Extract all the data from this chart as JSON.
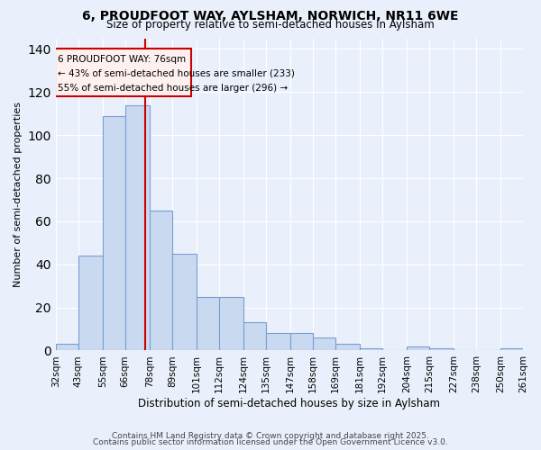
{
  "title1": "6, PROUDFOOT WAY, AYLSHAM, NORWICH, NR11 6WE",
  "title2": "Size of property relative to semi-detached houses in Aylsham",
  "xlabel": "Distribution of semi-detached houses by size in Aylsham",
  "ylabel": "Number of semi-detached properties",
  "bin_labels": [
    "32sqm",
    "43sqm",
    "55sqm",
    "66sqm",
    "78sqm",
    "89sqm",
    "101sqm",
    "112sqm",
    "124sqm",
    "135sqm",
    "147sqm",
    "158sqm",
    "169sqm",
    "181sqm",
    "192sqm",
    "204sqm",
    "215sqm",
    "227sqm",
    "238sqm",
    "250sqm",
    "261sqm"
  ],
  "bin_edges": [
    32,
    43,
    55,
    66,
    78,
    89,
    101,
    112,
    124,
    135,
    147,
    158,
    169,
    181,
    192,
    204,
    215,
    227,
    238,
    250,
    261
  ],
  "bar_heights": [
    3,
    44,
    109,
    114,
    65,
    45,
    25,
    25,
    13,
    8,
    8,
    6,
    3,
    1,
    0,
    2,
    1,
    0,
    0,
    1
  ],
  "bar_color": "#c9d9f0",
  "bar_edgecolor": "#7a9fd4",
  "property_size": 76,
  "property_label": "6 PROUDFOOT WAY: 76sqm",
  "annotation_line1": "← 43% of semi-detached houses are smaller (233)",
  "annotation_line2": "55% of semi-detached houses are larger (296) →",
  "red_line_color": "#cc0000",
  "annotation_box_facecolor": "#fff0f0",
  "annotation_box_edgecolor": "#cc0000",
  "ylim": [
    0,
    145
  ],
  "background_color": "#eaf0fb",
  "footer1": "Contains HM Land Registry data © Crown copyright and database right 2025.",
  "footer2": "Contains public sector information licensed under the Open Government Licence v3.0."
}
